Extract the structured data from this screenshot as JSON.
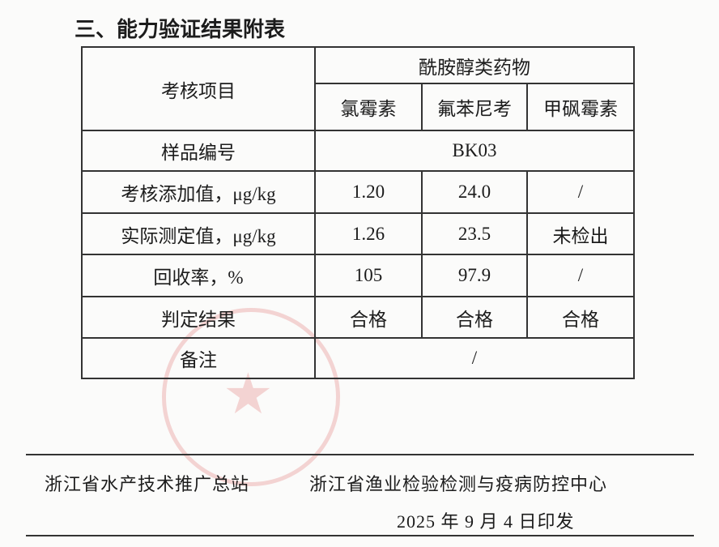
{
  "title": "三、能力验证结果附表",
  "table": {
    "item_header": "考核项目",
    "group_header": "酰胺醇类药物",
    "drugs": [
      "氯霉素",
      "氟苯尼考",
      "甲砜霉素"
    ],
    "sample_label": "样品编号",
    "sample_id": "BK03",
    "rows": [
      {
        "label": "考核添加值，μg/kg",
        "values": [
          "1.20",
          "24.0",
          "/"
        ]
      },
      {
        "label": "实际测定值，μg/kg",
        "values": [
          "1.26",
          "23.5",
          "未检出"
        ]
      },
      {
        "label": "回收率，%",
        "values": [
          "105",
          "97.9",
          "/"
        ]
      },
      {
        "label": "判定结果",
        "values": [
          "合格",
          "合格",
          "合格"
        ]
      }
    ],
    "remark_label": "备注",
    "remark_value": "/"
  },
  "footer": {
    "org1": "浙江省水产技术推广总站",
    "org2": "浙江省渔业检验检测与疫病防控中心",
    "date": "2025 年 9 月 4 日印发"
  },
  "stamp_color": "#dc5a5a"
}
